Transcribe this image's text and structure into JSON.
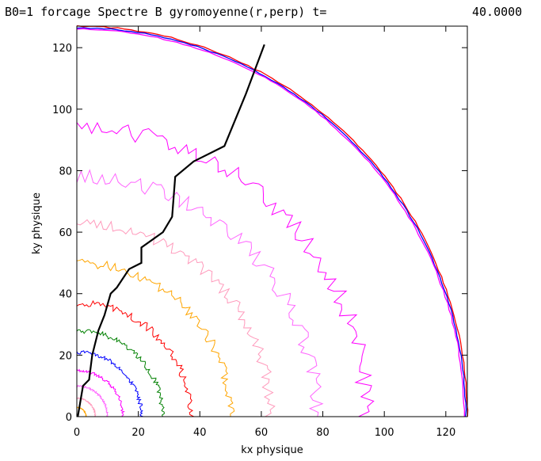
{
  "chart_data": {
    "type": "contour",
    "title": "B0=1 forcage Spectre B gyromoyenne(r,perp) t=",
    "time_value": "40.0000",
    "xlabel": "kx physique",
    "ylabel": "ky physique",
    "xlim": [
      0,
      127
    ],
    "ylim": [
      0,
      127
    ],
    "x_ticks": [
      "0",
      "20",
      "40",
      "60",
      "80",
      "100",
      "120"
    ],
    "y_ticks": [
      "0",
      "20",
      "40",
      "60",
      "80",
      "100",
      "120"
    ],
    "contour_levels": [
      {
        "color": "#ff0000",
        "radius": 127
      },
      {
        "color": "#0000ff",
        "radius": 126.5
      },
      {
        "color": "#ff00ff",
        "radius": 126
      },
      {
        "color": "#ff00ff",
        "radius": 94
      },
      {
        "color": "#ff66ff",
        "radius": 78
      },
      {
        "color": "#ff99bb",
        "radius": 63
      },
      {
        "color": "#ffa500",
        "radius": 50
      },
      {
        "color": "#ff0000",
        "radius": 37
      },
      {
        "color": "#008000",
        "radius": 28
      },
      {
        "color": "#0000ff",
        "radius": 21
      },
      {
        "color": "#ff00ff",
        "radius": 15
      },
      {
        "color": "#ff66ff",
        "radius": 10
      },
      {
        "color": "#ff99bb",
        "radius": 6
      },
      {
        "color": "#ffa500",
        "radius": 3
      }
    ],
    "black_line": {
      "x": [
        0.3,
        2,
        4,
        5,
        7,
        9,
        11,
        13,
        17,
        21,
        21,
        28,
        31,
        32,
        38,
        48,
        55,
        61
      ],
      "y": [
        0,
        10,
        12,
        20,
        28,
        33,
        40,
        42,
        48,
        50,
        55,
        60,
        65,
        78,
        83,
        88,
        105,
        121
      ]
    }
  }
}
